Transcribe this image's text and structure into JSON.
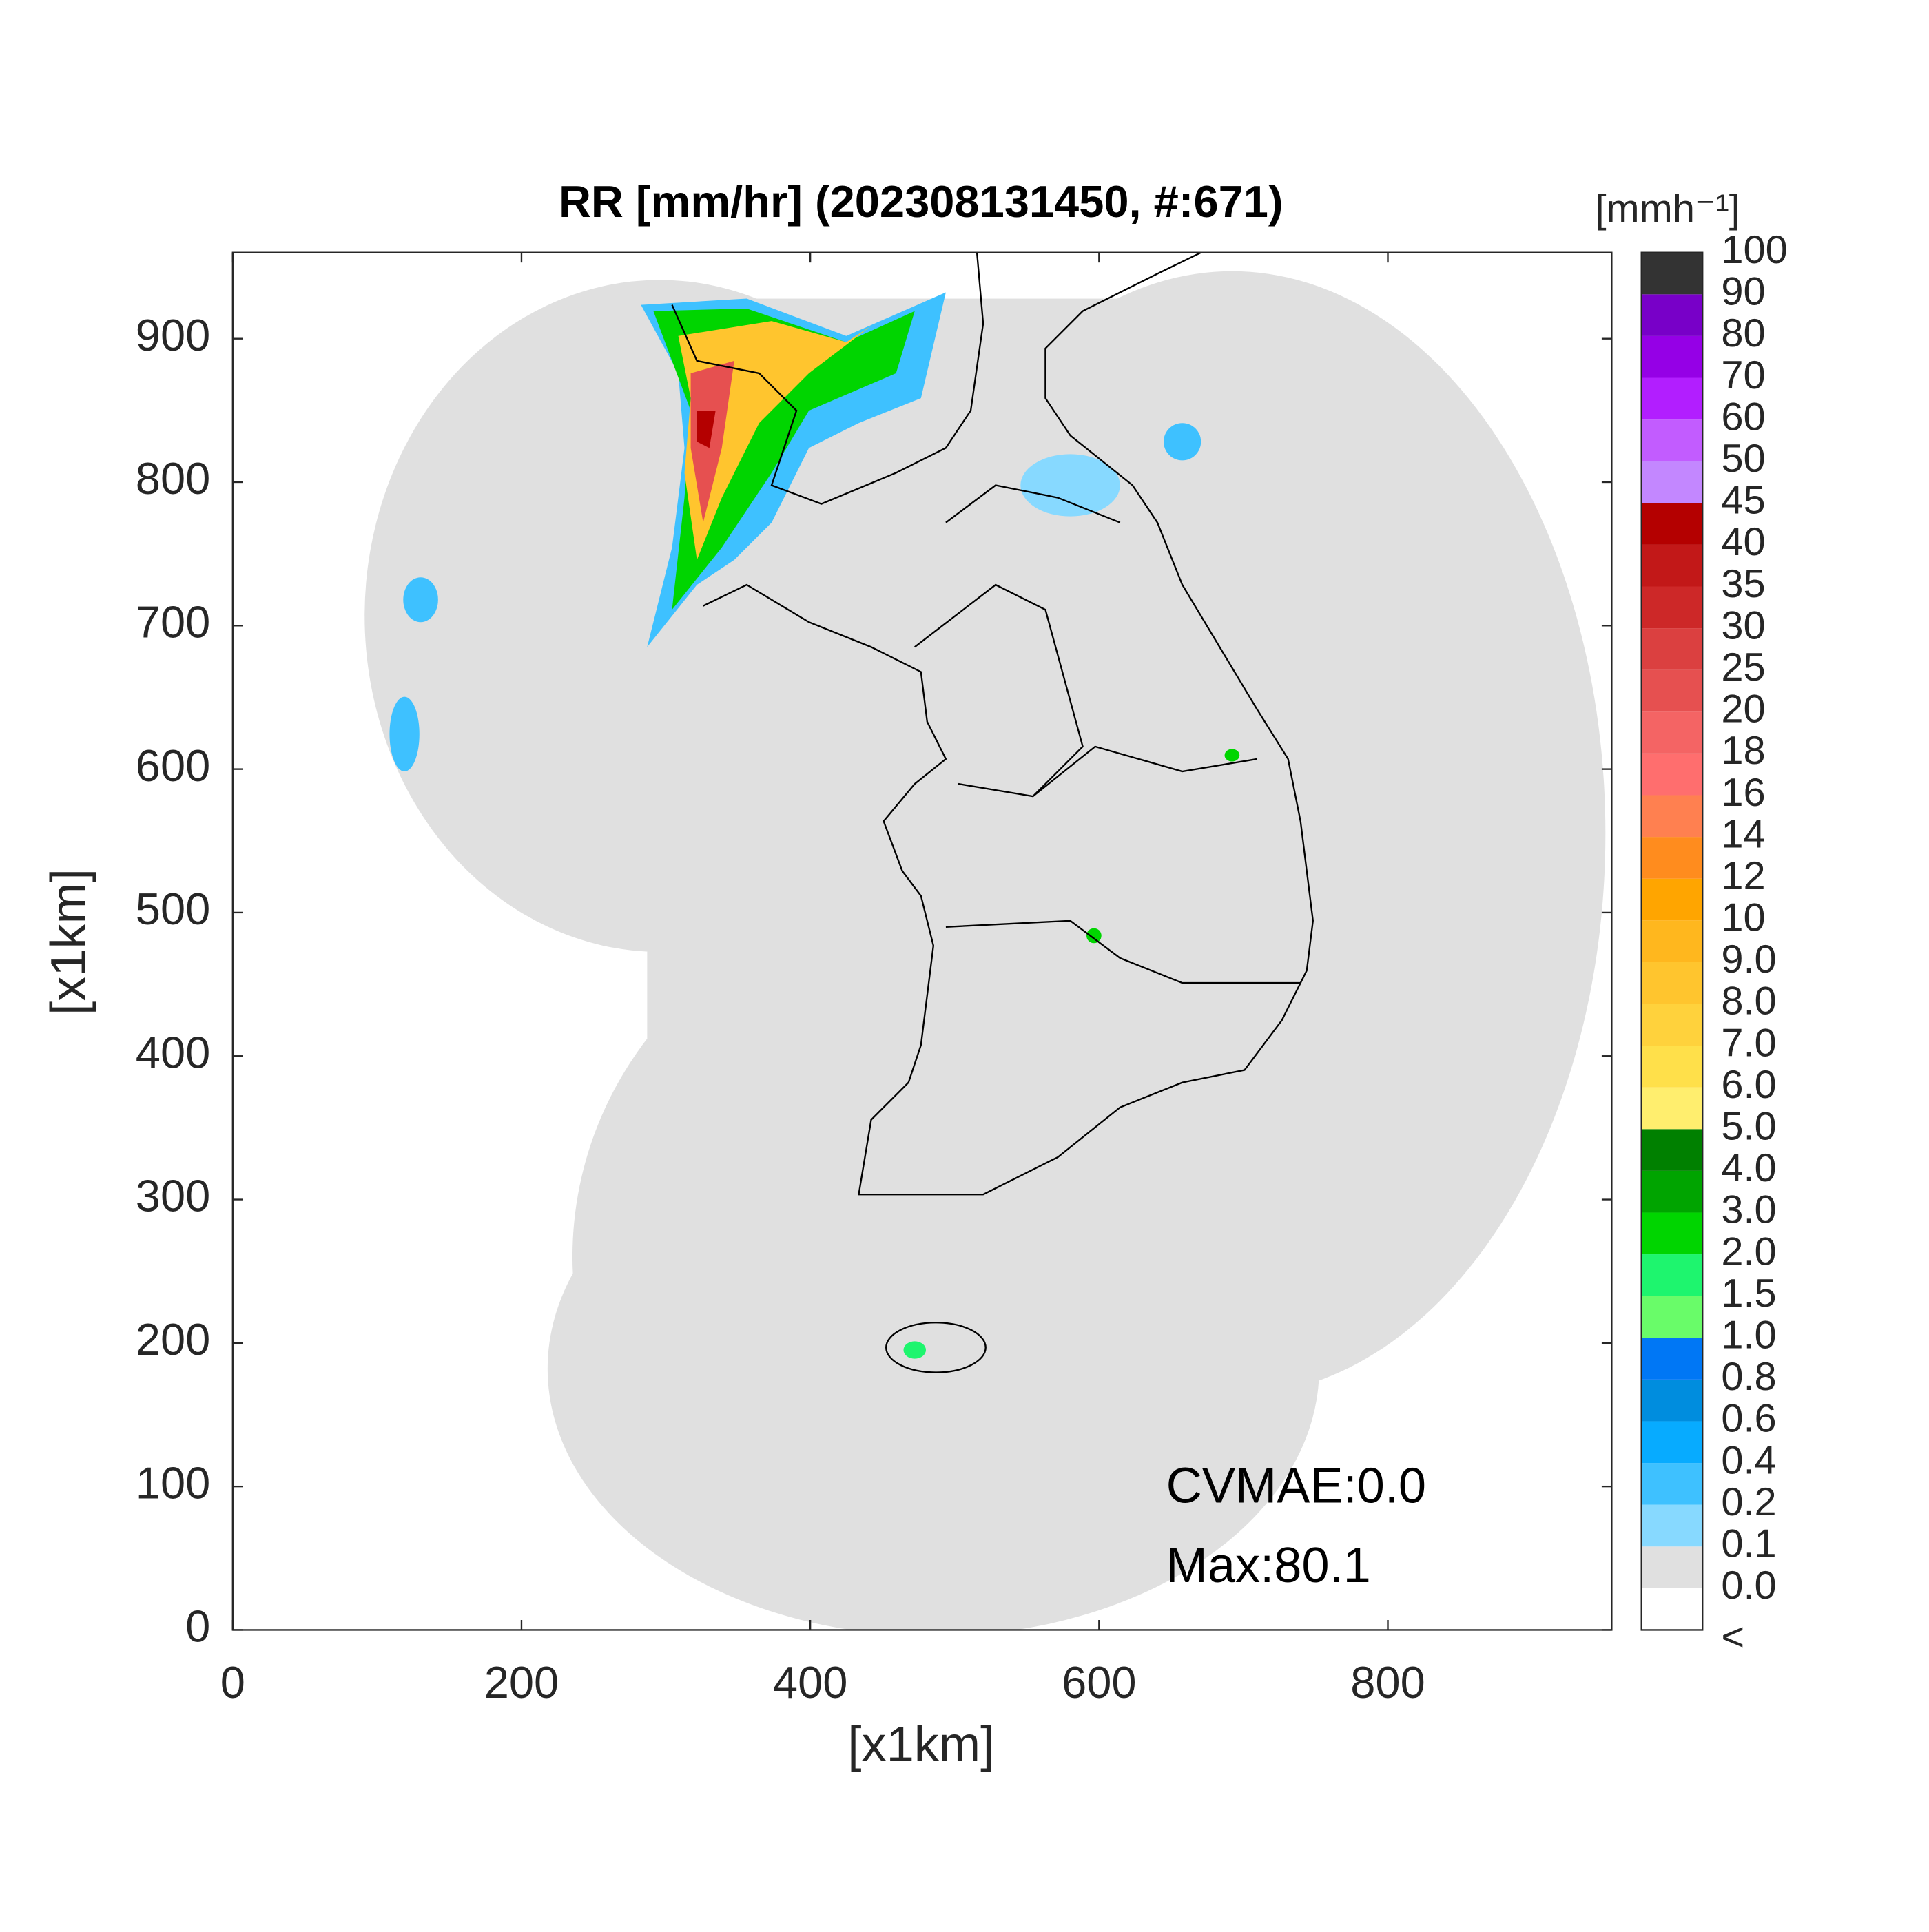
{
  "chart_data": {
    "type": "radar-map",
    "title": "RR [mm/hr] (202308131450, #:671)",
    "xlabel": "[x1km]",
    "ylabel": "[x1km]",
    "xlim": [
      0,
      955
    ],
    "ylim": [
      0,
      960
    ],
    "xticks": [
      0,
      200,
      400,
      600,
      800
    ],
    "yticks": [
      0,
      100,
      200,
      300,
      400,
      500,
      600,
      700,
      800,
      900
    ],
    "annotations": [
      "CVMAE:0.0",
      "Max:80.1"
    ],
    "colorbar": {
      "unit": "[mmh⁻¹]",
      "labels": [
        "<",
        "0.0",
        "0.1",
        "0.2",
        "0.4",
        "0.6",
        "0.8",
        "1.0",
        "1.5",
        "2.0",
        "3.0",
        "4.0",
        "5.0",
        "6.0",
        "7.0",
        "8.0",
        "9.0",
        "10",
        "12",
        "14",
        "16",
        "18",
        "20",
        "25",
        "30",
        "35",
        "40",
        "45",
        "50",
        "60",
        "70",
        "80",
        "90",
        "100"
      ],
      "colors": [
        "#ffffff",
        "#e0e0e0",
        "#87d9ff",
        "#3ec1ff",
        "#07abff",
        "#008dde",
        "#0077f5",
        "#69fc69",
        "#1ef56e",
        "#00d500",
        "#00a400",
        "#008000",
        "#ffee6e",
        "#ffe04a",
        "#ffd23c",
        "#ffc52e",
        "#ffb71e",
        "#ffa500",
        "#ff8c1e",
        "#ff8050",
        "#ff6e6e",
        "#f46464",
        "#e65050",
        "#db4040",
        "#cd2828",
        "#c21818",
        "#b40000",
        "#c387ff",
        "#c25cff",
        "#b21eff",
        "#9500e6",
        "#7800c8",
        "#333333"
      ]
    }
  }
}
